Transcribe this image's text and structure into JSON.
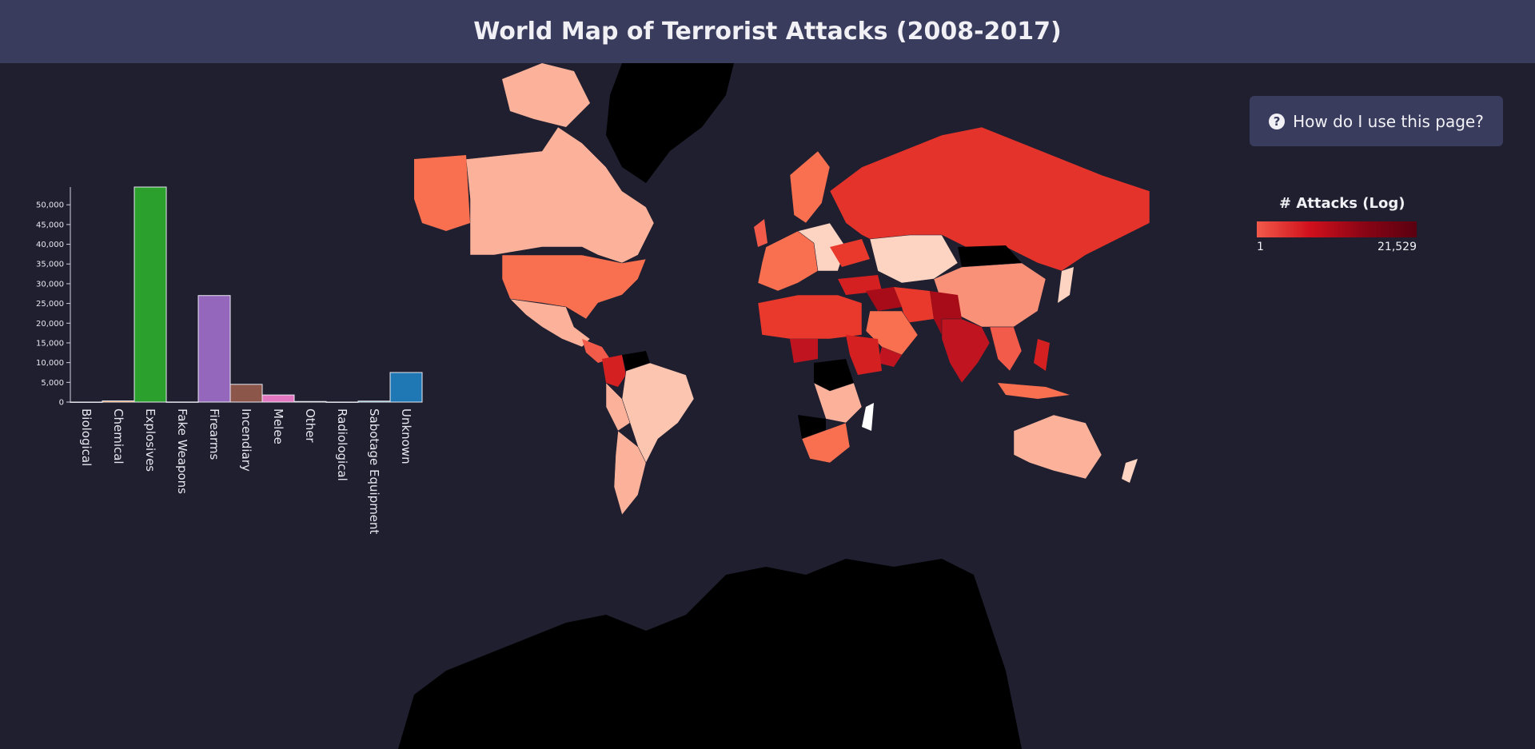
{
  "header": {
    "title": "World Map of Terrorist Attacks (2008-2017)"
  },
  "help_button": {
    "label": "How do I use this page?",
    "icon": "question-circle-icon"
  },
  "legend": {
    "title": "# Attacks (Log)",
    "min_label": "1",
    "max_label": "21,529",
    "colors": [
      "#f25a4a",
      "#d0101c",
      "#8a0515",
      "#5a0010"
    ]
  },
  "chart_data": {
    "type": "bar",
    "categories": [
      "Biological",
      "Chemical",
      "Explosives",
      "Fake Weapons",
      "Firearms",
      "Incendiary",
      "Melee",
      "Other",
      "Radiological",
      "Sabotage Equipment",
      "Unknown"
    ],
    "values": [
      10,
      300,
      54500,
      30,
      27000,
      4500,
      1800,
      150,
      15,
      250,
      7500
    ],
    "colors": [
      "#1f77b4",
      "#ff7f0e",
      "#2ca02c",
      "#d62728",
      "#9467bd",
      "#8c564b",
      "#e377c2",
      "#7f7f7f",
      "#bcbd22",
      "#17becf",
      "#1f77b4"
    ],
    "yticks": [
      "0",
      "5,000",
      "10,000",
      "15,000",
      "20,000",
      "25,000",
      "30,000",
      "35,000",
      "40,000",
      "45,000",
      "50,000"
    ],
    "ytick_values": [
      0,
      5000,
      10000,
      15000,
      20000,
      25000,
      30000,
      35000,
      40000,
      45000,
      50000
    ],
    "ylim": [
      0,
      54500
    ],
    "title": "",
    "xlabel": "",
    "ylabel": ""
  },
  "map": {
    "no_data_color": "#000000",
    "ocean_color": "#1f1f30"
  }
}
